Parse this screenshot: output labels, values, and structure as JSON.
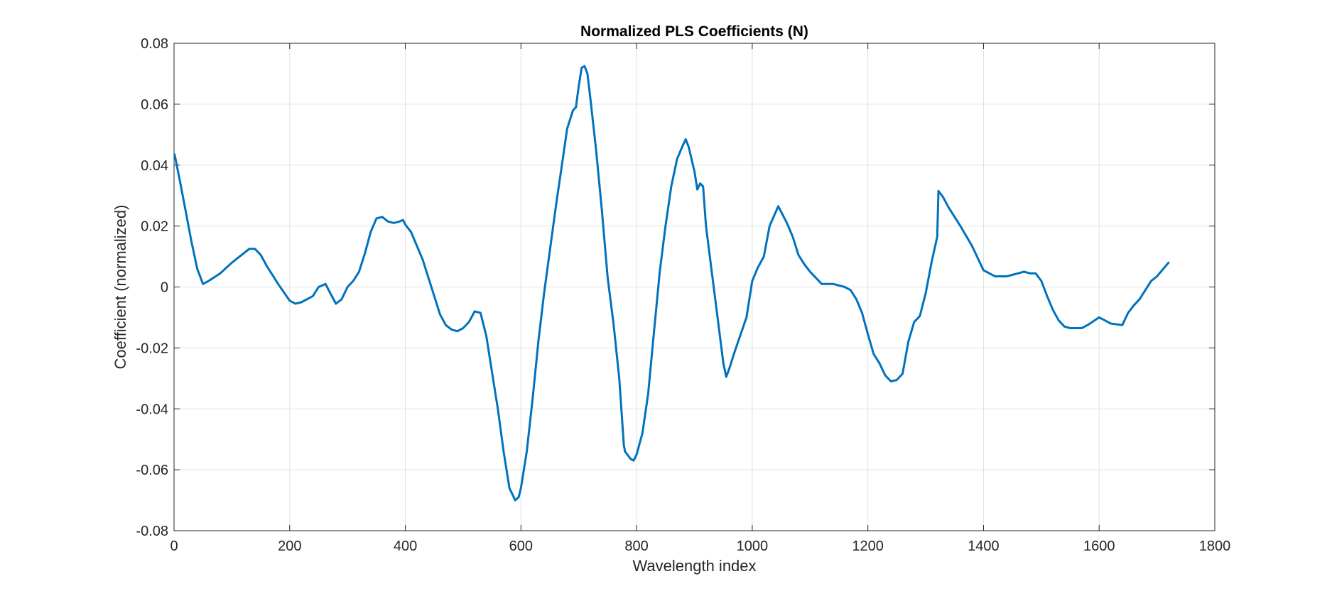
{
  "chart_data": {
    "type": "line",
    "title": "Normalized PLS Coefficients (N)",
    "xlabel": "Wavelength index",
    "ylabel": "Coefficient (normalized)",
    "xlim": [
      0,
      1800
    ],
    "ylim": [
      -0.08,
      0.08
    ],
    "xticks": [
      0,
      200,
      400,
      600,
      800,
      1000,
      1200,
      1400,
      1600,
      1800
    ],
    "yticks": [
      -0.08,
      -0.06,
      -0.04,
      -0.02,
      0,
      0.02,
      0.04,
      0.06,
      0.08
    ],
    "xtick_labels": [
      "0",
      "200",
      "400",
      "600",
      "800",
      "1000",
      "1200",
      "1400",
      "1600",
      "1800"
    ],
    "ytick_labels": [
      "-0.08",
      "-0.06",
      "-0.04",
      "-0.02",
      "0",
      "0.02",
      "0.04",
      "0.06",
      "0.08"
    ],
    "grid": true,
    "line_color": "#0072BD",
    "series": [
      {
        "x": [
          1,
          10,
          20,
          30,
          40,
          50,
          60,
          80,
          100,
          120,
          130,
          140,
          150,
          160,
          180,
          200,
          210,
          220,
          240,
          250,
          262,
          270,
          280,
          290,
          300,
          310,
          320,
          330,
          340,
          350,
          360,
          370,
          380,
          390,
          396,
          400,
          410,
          420,
          430,
          440,
          450,
          460,
          470,
          480,
          490,
          500,
          510,
          520,
          530,
          540,
          550,
          560,
          570,
          580,
          590,
          596,
          600,
          610,
          620,
          630,
          640,
          660,
          680,
          690,
          695,
          700,
          705,
          710,
          715,
          720,
          730,
          740,
          750,
          760,
          770,
          778,
          780,
          790,
          795,
          800,
          810,
          820,
          830,
          840,
          850,
          860,
          870,
          880,
          885,
          890,
          900,
          905,
          910,
          915,
          920,
          930,
          940,
          950,
          955,
          960,
          970,
          980,
          990,
          1000,
          1010,
          1020,
          1030,
          1045,
          1060,
          1070,
          1080,
          1090,
          1100,
          1120,
          1130,
          1140,
          1160,
          1170,
          1180,
          1190,
          1200,
          1210,
          1220,
          1230,
          1240,
          1250,
          1260,
          1270,
          1280,
          1290,
          1300,
          1310,
          1320,
          1322,
          1330,
          1340,
          1360,
          1380,
          1400,
          1420,
          1440,
          1460,
          1470,
          1480,
          1490,
          1500,
          1510,
          1520,
          1530,
          1540,
          1550,
          1570,
          1580,
          1600,
          1610,
          1620,
          1640,
          1650,
          1660,
          1670,
          1680,
          1690,
          1700,
          1720
        ],
        "y": [
          0.0435,
          0.035,
          0.025,
          0.015,
          0.006,
          0.001,
          0.002,
          0.0045,
          0.008,
          0.011,
          0.0125,
          0.0125,
          0.0105,
          0.007,
          0.001,
          -0.0045,
          -0.0055,
          -0.005,
          -0.003,
          0.0,
          0.001,
          -0.002,
          -0.0055,
          -0.004,
          0.0,
          0.002,
          0.005,
          0.011,
          0.018,
          0.0225,
          0.023,
          0.0215,
          0.021,
          0.0215,
          0.022,
          0.0205,
          0.018,
          0.0135,
          0.009,
          0.003,
          -0.003,
          -0.009,
          -0.0125,
          -0.014,
          -0.0145,
          -0.0135,
          -0.0115,
          -0.008,
          -0.0085,
          -0.016,
          -0.028,
          -0.04,
          -0.054,
          -0.066,
          -0.07,
          -0.069,
          -0.066,
          -0.054,
          -0.037,
          -0.018,
          -0.002,
          0.026,
          0.052,
          0.058,
          0.059,
          0.066,
          0.072,
          0.0725,
          0.07,
          0.062,
          0.045,
          0.025,
          0.003,
          -0.012,
          -0.03,
          -0.052,
          -0.054,
          -0.0565,
          -0.057,
          -0.055,
          -0.048,
          -0.035,
          -0.015,
          0.005,
          0.02,
          0.033,
          0.042,
          0.0465,
          0.0485,
          0.046,
          0.038,
          0.032,
          0.034,
          0.033,
          0.02,
          0.005,
          -0.01,
          -0.025,
          -0.0295,
          -0.027,
          -0.021,
          -0.0155,
          -0.01,
          0.002,
          0.0065,
          0.01,
          0.02,
          0.0265,
          0.021,
          0.0165,
          0.0105,
          0.0075,
          0.005,
          0.001,
          0.001,
          0.001,
          0.0,
          -0.001,
          -0.004,
          -0.0085,
          -0.0155,
          -0.022,
          -0.025,
          -0.029,
          -0.031,
          -0.0305,
          -0.0285,
          -0.018,
          -0.0115,
          -0.0095,
          -0.002,
          0.008,
          0.0165,
          0.0315,
          0.0295,
          0.026,
          0.02,
          0.0135,
          0.0055,
          0.0035,
          0.0035,
          0.0045,
          0.005,
          0.0045,
          0.0045,
          0.002,
          -0.003,
          -0.0075,
          -0.011,
          -0.013,
          -0.0135,
          -0.0135,
          -0.0125,
          -0.01,
          -0.011,
          -0.012,
          -0.0125,
          -0.0085,
          -0.006,
          -0.004,
          -0.001,
          0.002,
          0.0035,
          0.008
        ]
      }
    ]
  }
}
